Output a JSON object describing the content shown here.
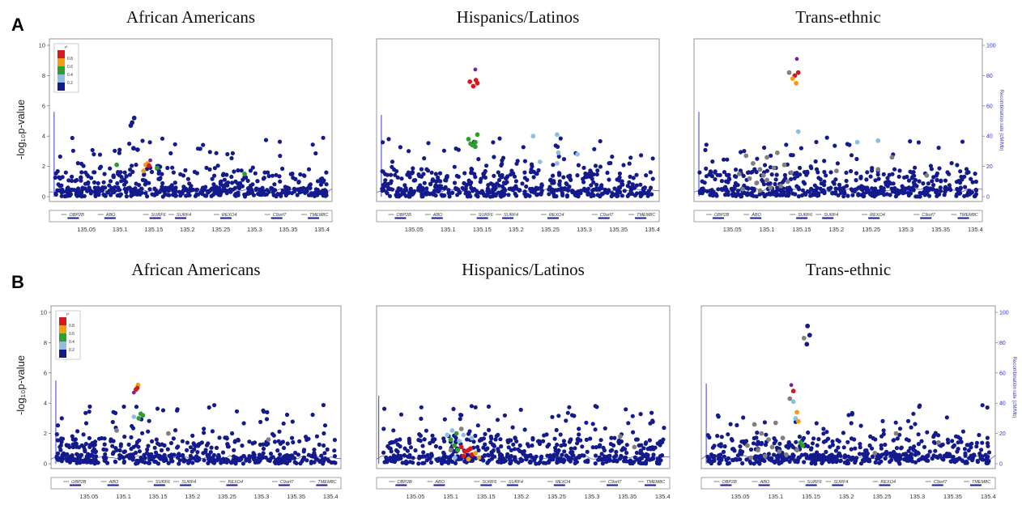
{
  "figure": {
    "row_labels": [
      "A",
      "B"
    ],
    "ylabel": "-log₁₀p-value",
    "right_axis_label": "Recombination rate (cM/Mb)",
    "legend": {
      "r2_symbol": "r²",
      "ticks": [
        "0.8",
        "0.6",
        "0.4",
        "0.2"
      ]
    },
    "colors": {
      "r2_0.8_1.0": "#d7191c",
      "r2_0.6_0.8": "#f39c12",
      "r2_0.4_0.6": "#2ca02c",
      "r2_0.2_0.4": "#8fbfe0",
      "r2_0_0.2": "#131a8c",
      "lead_snp": "#7b1fa2",
      "missing_r2": "#808080",
      "recombination": "#5b5bd6"
    }
  },
  "chart_data": [
    {
      "row": "A",
      "title": "African Americans",
      "type": "scatter",
      "xlabel": "",
      "ylabel": "-log₁₀p-value",
      "ylim": [
        0,
        10
      ],
      "yticks": [
        "10",
        "8",
        "6",
        "4",
        "2",
        "0"
      ],
      "xticks": [
        "135.05",
        "135.1",
        "135.15",
        "135.2",
        "135.25",
        "135.3",
        "135.35",
        "135.4"
      ],
      "right_axis": false,
      "genes": [
        "OBP2B",
        "ABO",
        "SURF6",
        "SURF4",
        "REXO4",
        "C9orf7",
        "TMEM8C"
      ],
      "recomb_spike": {
        "x": 135.002,
        "y": 5.6
      },
      "legend": true,
      "x_range": [
        134.995,
        135.415
      ],
      "highlights": [
        {
          "x": 135.118,
          "y": 4.9,
          "c": "b"
        },
        {
          "x": 135.121,
          "y": 5.2,
          "c": "b"
        },
        {
          "x": 135.116,
          "y": 4.7,
          "c": "b"
        },
        {
          "x": 135.12,
          "y": 3.2,
          "c": "b"
        },
        {
          "x": 135.126,
          "y": 3.1,
          "c": "b"
        },
        {
          "x": 135.145,
          "y": 2.4,
          "c": "p"
        },
        {
          "x": 135.141,
          "y": 2.2,
          "c": "o"
        },
        {
          "x": 135.138,
          "y": 2.1,
          "c": "o"
        },
        {
          "x": 135.135,
          "y": 1.7,
          "c": "o"
        },
        {
          "x": 135.143,
          "y": 2.05,
          "c": "r"
        },
        {
          "x": 135.095,
          "y": 2.1,
          "c": "g"
        },
        {
          "x": 135.155,
          "y": 1.9,
          "c": "g"
        },
        {
          "x": 135.285,
          "y": 1.5,
          "c": "g"
        }
      ]
    },
    {
      "row": "A",
      "title": "Hispanics/Latinos",
      "type": "scatter",
      "xlabel": "",
      "ylabel": "",
      "ylim": [
        0,
        10
      ],
      "yticks": [],
      "xticks": [
        "135.05",
        "135.1",
        "135.15",
        "135.2",
        "135.25",
        "135.3",
        "135.35",
        "135.4"
      ],
      "right_axis": false,
      "genes": [
        "OBP2B",
        "ABO",
        "SURF6",
        "SURF4",
        "REXO4",
        "C9orf7",
        "TMEM8C"
      ],
      "recomb_spike": {
        "x": 135.002,
        "y": 5.4
      },
      "legend": false,
      "x_range": [
        134.995,
        135.41
      ],
      "highlights": [
        {
          "x": 135.14,
          "y": 8.4,
          "c": "p"
        },
        {
          "x": 135.132,
          "y": 7.6,
          "c": "r"
        },
        {
          "x": 135.137,
          "y": 7.3,
          "c": "r"
        },
        {
          "x": 135.141,
          "y": 7.7,
          "c": "r"
        },
        {
          "x": 135.143,
          "y": 7.5,
          "c": "r"
        },
        {
          "x": 135.13,
          "y": 3.8,
          "c": "g"
        },
        {
          "x": 135.133,
          "y": 3.5,
          "c": "g"
        },
        {
          "x": 135.136,
          "y": 3.4,
          "c": "g"
        },
        {
          "x": 135.14,
          "y": 3.3,
          "c": "g"
        },
        {
          "x": 135.143,
          "y": 4.1,
          "c": "g"
        },
        {
          "x": 135.14,
          "y": 3.6,
          "c": "g"
        },
        {
          "x": 135.225,
          "y": 4.0,
          "c": "l"
        },
        {
          "x": 135.26,
          "y": 4.1,
          "c": "l"
        },
        {
          "x": 135.262,
          "y": 2.9,
          "c": "l"
        },
        {
          "x": 135.29,
          "y": 2.8,
          "c": "l"
        },
        {
          "x": 135.235,
          "y": 2.3,
          "c": "l"
        },
        {
          "x": 135.26,
          "y": 2.2,
          "c": "l"
        }
      ]
    },
    {
      "row": "A",
      "title": "Trans-ethnic",
      "type": "scatter",
      "xlabel": "",
      "ylabel": "",
      "ylim": [
        0,
        10
      ],
      "yticks": [],
      "xticks": [
        "135.05",
        "135.1",
        "135.15",
        "135.2",
        "135.25",
        "135.3",
        "135.35",
        "135.4"
      ],
      "right_axis": true,
      "right_ticks": [
        "100",
        "80",
        "60",
        "40",
        "20",
        "0"
      ],
      "genes": [
        "OBP2B",
        "ABO",
        "SURF6",
        "SURF4",
        "REXO4",
        "C9orf7",
        "TMEM8C"
      ],
      "recomb_spike": {
        "x": 135.002,
        "y": 5.6
      },
      "legend": false,
      "x_range": [
        134.995,
        135.41
      ],
      "highlights": [
        {
          "x": 135.143,
          "y": 9.1,
          "c": "p"
        },
        {
          "x": 135.14,
          "y": 8.0,
          "c": "r"
        },
        {
          "x": 135.145,
          "y": 8.2,
          "c": "r"
        },
        {
          "x": 135.132,
          "y": 8.2,
          "c": "x"
        },
        {
          "x": 135.137,
          "y": 7.8,
          "c": "o"
        },
        {
          "x": 135.142,
          "y": 7.5,
          "c": "o"
        },
        {
          "x": 135.145,
          "y": 4.3,
          "c": "l"
        },
        {
          "x": 135.23,
          "y": 3.6,
          "c": "l"
        },
        {
          "x": 135.26,
          "y": 3.7,
          "c": "l"
        },
        {
          "x": 135.07,
          "y": 2.7,
          "c": "x"
        },
        {
          "x": 135.08,
          "y": 2.2,
          "c": "x"
        },
        {
          "x": 135.09,
          "y": 1.8,
          "c": "x"
        },
        {
          "x": 135.1,
          "y": 2.6,
          "c": "x"
        },
        {
          "x": 135.06,
          "y": 1.5,
          "c": "x"
        },
        {
          "x": 135.075,
          "y": 1.2,
          "c": "x"
        },
        {
          "x": 135.085,
          "y": 0.9,
          "c": "x"
        },
        {
          "x": 135.095,
          "y": 1.4,
          "c": "x"
        },
        {
          "x": 135.105,
          "y": 0.6,
          "c": "x"
        },
        {
          "x": 135.11,
          "y": 1.9,
          "c": "x"
        },
        {
          "x": 135.125,
          "y": 2.1,
          "c": "x"
        },
        {
          "x": 135.13,
          "y": 1.0,
          "c": "x"
        },
        {
          "x": 135.12,
          "y": 0.7,
          "c": "x"
        },
        {
          "x": 135.065,
          "y": 0.5,
          "c": "x"
        },
        {
          "x": 135.1,
          "y": 1.1,
          "c": "x"
        },
        {
          "x": 135.09,
          "y": 0.4,
          "c": "x"
        },
        {
          "x": 135.135,
          "y": 1.6,
          "c": "x"
        },
        {
          "x": 135.26,
          "y": 1.8,
          "c": "x"
        },
        {
          "x": 135.28,
          "y": 2.6,
          "c": "x"
        },
        {
          "x": 135.2,
          "y": 1.7,
          "c": "x"
        },
        {
          "x": 135.33,
          "y": 1.4,
          "c": "x"
        },
        {
          "x": 135.115,
          "y": 2.9,
          "c": "x"
        }
      ]
    },
    {
      "row": "B",
      "title": "African Americans",
      "type": "scatter",
      "xlabel": "",
      "ylabel": "-log₁₀p-value",
      "ylim": [
        0,
        10
      ],
      "yticks": [
        "10",
        "8",
        "6",
        "4",
        "2",
        "0"
      ],
      "xticks": [
        "135.05",
        "135.1",
        "135.15",
        "135.2",
        "135.25",
        "135.3",
        "135.35",
        "135.4"
      ],
      "right_axis": false,
      "genes": [
        "OBP2B",
        "ABO",
        "SURF6",
        "SURF4",
        "REXO4",
        "C9orf7",
        "TMEM8C"
      ],
      "recomb_spike": {
        "x": 135.002,
        "y": 5.5
      },
      "legend": true,
      "x_range": [
        134.995,
        135.415
      ],
      "highlights": [
        {
          "x": 135.121,
          "y": 5.2,
          "c": "o"
        },
        {
          "x": 135.118,
          "y": 4.9,
          "c": "r"
        },
        {
          "x": 135.115,
          "y": 4.7,
          "c": "p"
        },
        {
          "x": 135.12,
          "y": 5.0,
          "c": "r"
        },
        {
          "x": 135.125,
          "y": 3.3,
          "c": "g"
        },
        {
          "x": 135.122,
          "y": 3.0,
          "c": "g"
        },
        {
          "x": 135.128,
          "y": 3.2,
          "c": "g"
        },
        {
          "x": 135.115,
          "y": 3.1,
          "c": "l"
        },
        {
          "x": 135.09,
          "y": 2.2,
          "c": "x"
        },
        {
          "x": 135.165,
          "y": 2.0,
          "c": "x"
        },
        {
          "x": 135.31,
          "y": 1.6,
          "c": "x"
        }
      ]
    },
    {
      "row": "B",
      "title": "Hispanics/Latinos",
      "type": "scatter",
      "xlabel": "",
      "ylabel": "",
      "ylim": [
        0,
        10
      ],
      "yticks": [],
      "xticks": [
        "135.05",
        "135.1",
        "135.15",
        "135.2",
        "135.25",
        "135.3",
        "135.35",
        "135.4"
      ],
      "right_axis": false,
      "genes": [
        "OBP2B",
        "ABO",
        "SURF6",
        "SURF4",
        "REXO4",
        "C9orf7",
        "TMEM8C"
      ],
      "recomb_spike": {
        "x": 134.998,
        "y": 4.5
      },
      "legend": false,
      "x_range": [
        134.995,
        135.41
      ],
      "highlights": [
        {
          "x": 135.115,
          "y": 1.1,
          "c": "r"
        },
        {
          "x": 135.12,
          "y": 0.8,
          "c": "r"
        },
        {
          "x": 135.125,
          "y": 0.9,
          "c": "r"
        },
        {
          "x": 135.13,
          "y": 0.6,
          "c": "r"
        },
        {
          "x": 135.118,
          "y": 0.5,
          "c": "r"
        },
        {
          "x": 135.128,
          "y": 1.0,
          "c": "r"
        },
        {
          "x": 135.135,
          "y": 0.7,
          "c": "o"
        },
        {
          "x": 135.14,
          "y": 0.4,
          "c": "o"
        },
        {
          "x": 135.125,
          "y": 0.3,
          "c": "o"
        },
        {
          "x": 135.1,
          "y": 1.6,
          "c": "g"
        },
        {
          "x": 135.105,
          "y": 1.2,
          "c": "g"
        },
        {
          "x": 135.108,
          "y": 2.0,
          "c": "g"
        },
        {
          "x": 135.11,
          "y": 0.9,
          "c": "g"
        },
        {
          "x": 135.095,
          "y": 1.9,
          "c": "l"
        },
        {
          "x": 135.102,
          "y": 2.2,
          "c": "l"
        },
        {
          "x": 135.112,
          "y": 1.5,
          "c": "l"
        },
        {
          "x": 135.118,
          "y": 1.9,
          "c": "l"
        },
        {
          "x": 135.13,
          "y": 1.7,
          "c": "l"
        },
        {
          "x": 135.106,
          "y": 0.4,
          "c": "l"
        },
        {
          "x": 135.1,
          "y": 0.9,
          "c": "x"
        },
        {
          "x": 135.115,
          "y": 2.3,
          "c": "x"
        },
        {
          "x": 135.34,
          "y": 1.8,
          "c": "x"
        },
        {
          "x": 135.36,
          "y": 1.1,
          "c": "x"
        }
      ]
    },
    {
      "row": "B",
      "title": "Trans-ethnic",
      "type": "scatter",
      "xlabel": "",
      "ylabel": "",
      "ylim": [
        0,
        10
      ],
      "yticks": [],
      "xticks": [
        "135.05",
        "135.1",
        "135.15",
        "135.2",
        "135.25",
        "135.3",
        "135.35",
        "135.4"
      ],
      "right_axis": true,
      "right_ticks": [
        "100",
        "80",
        "60",
        "40",
        "20",
        "0"
      ],
      "genes": [
        "OBP2B",
        "ABO",
        "SURF6",
        "SURF4",
        "REXO4",
        "C9orf7",
        "TMEM8C"
      ],
      "recomb_spike": {
        "x": 135.002,
        "y": 5.3
      },
      "legend": false,
      "x_range": [
        134.995,
        135.41
      ],
      "highlights": [
        {
          "x": 135.145,
          "y": 9.1,
          "c": "b"
        },
        {
          "x": 135.14,
          "y": 8.3,
          "c": "x"
        },
        {
          "x": 135.148,
          "y": 8.5,
          "c": "b"
        },
        {
          "x": 135.144,
          "y": 7.9,
          "c": "b"
        },
        {
          "x": 135.122,
          "y": 5.2,
          "c": "p"
        },
        {
          "x": 135.125,
          "y": 4.8,
          "c": "r"
        },
        {
          "x": 135.12,
          "y": 4.3,
          "c": "x"
        },
        {
          "x": 135.125,
          "y": 4.1,
          "c": "l"
        },
        {
          "x": 135.13,
          "y": 3.4,
          "c": "o"
        },
        {
          "x": 135.128,
          "y": 3.0,
          "c": "l"
        },
        {
          "x": 135.132,
          "y": 2.8,
          "c": "o"
        },
        {
          "x": 135.135,
          "y": 1.4,
          "c": "g"
        },
        {
          "x": 135.138,
          "y": 1.2,
          "c": "g"
        },
        {
          "x": 135.07,
          "y": 2.6,
          "c": "x"
        },
        {
          "x": 135.08,
          "y": 2.0,
          "c": "x"
        },
        {
          "x": 135.09,
          "y": 1.6,
          "c": "x"
        },
        {
          "x": 135.1,
          "y": 2.7,
          "c": "x"
        },
        {
          "x": 135.06,
          "y": 1.2,
          "c": "x"
        },
        {
          "x": 135.075,
          "y": 0.9,
          "c": "x"
        },
        {
          "x": 135.085,
          "y": 0.5,
          "c": "x"
        },
        {
          "x": 135.095,
          "y": 1.1,
          "c": "x"
        },
        {
          "x": 135.105,
          "y": 0.8,
          "c": "x"
        },
        {
          "x": 135.11,
          "y": 1.7,
          "c": "x"
        },
        {
          "x": 135.115,
          "y": 0.6,
          "c": "x"
        },
        {
          "x": 135.13,
          "y": 0.9,
          "c": "x"
        },
        {
          "x": 135.065,
          "y": 0.4,
          "c": "x"
        },
        {
          "x": 135.24,
          "y": 0.7,
          "c": "x"
        },
        {
          "x": 135.27,
          "y": 2.0,
          "c": "x"
        },
        {
          "x": 135.33,
          "y": 1.4,
          "c": "x"
        }
      ]
    }
  ]
}
